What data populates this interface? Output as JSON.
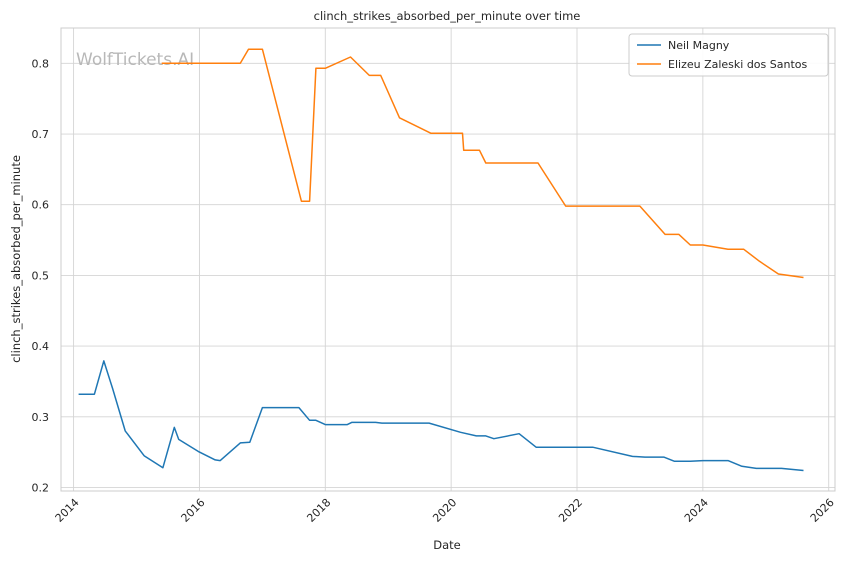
{
  "chart_data": {
    "type": "line",
    "title": "clinch_strikes_absorbed_per_minute over time",
    "xlabel": "Date",
    "ylabel": "clinch_strikes_absorbed_per_minute",
    "watermark": "WolfTickets.AI",
    "xlim": [
      2013.8,
      2026.1
    ],
    "ylim": [
      0.195,
      0.85
    ],
    "x_ticks": [
      2014,
      2016,
      2018,
      2020,
      2022,
      2024,
      2026
    ],
    "y_ticks": [
      0.2,
      0.3,
      0.4,
      0.5,
      0.6,
      0.7,
      0.8
    ],
    "grid": true,
    "legend_position": "top-right",
    "series": [
      {
        "name": "Neil Magny",
        "color": "#1f77b4",
        "points": [
          [
            2014.08,
            0.332
          ],
          [
            2014.33,
            0.332
          ],
          [
            2014.48,
            0.379
          ],
          [
            2014.62,
            0.34
          ],
          [
            2014.82,
            0.28
          ],
          [
            2015.12,
            0.245
          ],
          [
            2015.42,
            0.228
          ],
          [
            2015.6,
            0.285
          ],
          [
            2015.67,
            0.268
          ],
          [
            2015.98,
            0.251
          ],
          [
            2016.25,
            0.239
          ],
          [
            2016.33,
            0.238
          ],
          [
            2016.65,
            0.263
          ],
          [
            2016.8,
            0.264
          ],
          [
            2017.0,
            0.313
          ],
          [
            2017.58,
            0.313
          ],
          [
            2017.75,
            0.295
          ],
          [
            2017.85,
            0.295
          ],
          [
            2018.0,
            0.289
          ],
          [
            2018.35,
            0.289
          ],
          [
            2018.42,
            0.292
          ],
          [
            2018.8,
            0.292
          ],
          [
            2018.9,
            0.291
          ],
          [
            2019.65,
            0.291
          ],
          [
            2020.15,
            0.278
          ],
          [
            2020.4,
            0.273
          ],
          [
            2020.55,
            0.273
          ],
          [
            2020.68,
            0.269
          ],
          [
            2021.08,
            0.276
          ],
          [
            2021.35,
            0.257
          ],
          [
            2022.25,
            0.257
          ],
          [
            2022.88,
            0.244
          ],
          [
            2023.08,
            0.243
          ],
          [
            2023.38,
            0.243
          ],
          [
            2023.55,
            0.237
          ],
          [
            2023.8,
            0.237
          ],
          [
            2024.0,
            0.238
          ],
          [
            2024.4,
            0.238
          ],
          [
            2024.62,
            0.23
          ],
          [
            2024.85,
            0.227
          ],
          [
            2025.25,
            0.227
          ],
          [
            2025.6,
            0.224
          ]
        ]
      },
      {
        "name": "Elizeu Zaleski dos Santos",
        "color": "#ff7f0e",
        "points": [
          [
            2015.4,
            0.8
          ],
          [
            2016.65,
            0.8
          ],
          [
            2016.78,
            0.82
          ],
          [
            2017.0,
            0.82
          ],
          [
            2017.62,
            0.605
          ],
          [
            2017.75,
            0.605
          ],
          [
            2017.85,
            0.793
          ],
          [
            2018.0,
            0.793
          ],
          [
            2018.4,
            0.809
          ],
          [
            2018.7,
            0.783
          ],
          [
            2018.88,
            0.783
          ],
          [
            2019.18,
            0.723
          ],
          [
            2019.68,
            0.701
          ],
          [
            2020.18,
            0.701
          ],
          [
            2020.2,
            0.677
          ],
          [
            2020.45,
            0.677
          ],
          [
            2020.55,
            0.659
          ],
          [
            2021.38,
            0.659
          ],
          [
            2021.82,
            0.598
          ],
          [
            2023.0,
            0.598
          ],
          [
            2023.4,
            0.558
          ],
          [
            2023.62,
            0.558
          ],
          [
            2023.8,
            0.543
          ],
          [
            2024.0,
            0.543
          ],
          [
            2024.4,
            0.537
          ],
          [
            2024.65,
            0.537
          ],
          [
            2024.9,
            0.52
          ],
          [
            2025.2,
            0.502
          ],
          [
            2025.6,
            0.497
          ]
        ]
      }
    ]
  }
}
